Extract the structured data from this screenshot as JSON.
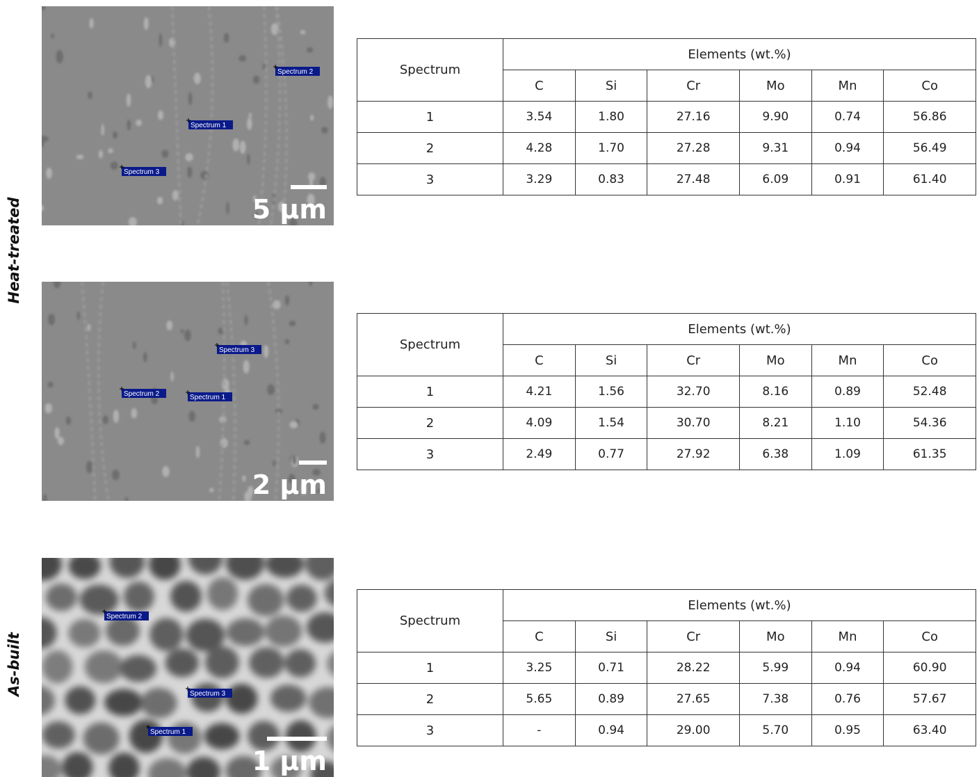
{
  "side_labels": [
    "Heat-treated",
    "As-built"
  ],
  "panels": [
    {
      "scale_bar": "5 µm",
      "markers": [
        "Spectrum 2",
        "Spectrum 1",
        "Spectrum 3"
      ],
      "table": {
        "row_header": "Spectrum",
        "group_header": "Elements (wt.%)",
        "elements": [
          "C",
          "Si",
          "Cr",
          "Mo",
          "Mn",
          "Co"
        ],
        "rows": [
          [
            "1",
            "3.54",
            "1.80",
            "27.16",
            "9.90",
            "0.74",
            "56.86"
          ],
          [
            "2",
            "4.28",
            "1.70",
            "27.28",
            "9.31",
            "0.94",
            "56.49"
          ],
          [
            "3",
            "3.29",
            "0.83",
            "27.48",
            "6.09",
            "0.91",
            "61.40"
          ]
        ]
      }
    },
    {
      "scale_bar": "2 µm",
      "markers": [
        "Spectrum 3",
        "Spectrum 2",
        "Spectrum 1"
      ],
      "table": {
        "row_header": "Spectrum",
        "group_header": "Elements (wt.%)",
        "elements": [
          "C",
          "Si",
          "Cr",
          "Mo",
          "Mn",
          "Co"
        ],
        "rows": [
          [
            "1",
            "4.21",
            "1.56",
            "32.70",
            "8.16",
            "0.89",
            "52.48"
          ],
          [
            "2",
            "4.09",
            "1.54",
            "30.70",
            "8.21",
            "1.10",
            "54.36"
          ],
          [
            "3",
            "2.49",
            "0.77",
            "27.92",
            "6.38",
            "1.09",
            "61.35"
          ]
        ]
      }
    },
    {
      "scale_bar": "1 µm",
      "markers": [
        "Spectrum 2",
        "Spectrum 3",
        "Spectrum 1"
      ],
      "table": {
        "row_header": "Spectrum",
        "group_header": "Elements (wt.%)",
        "elements": [
          "C",
          "Si",
          "Cr",
          "Mo",
          "Mn",
          "Co"
        ],
        "rows": [
          [
            "1",
            "3.25",
            "0.71",
            "28.22",
            "5.99",
            "0.94",
            "60.90"
          ],
          [
            "2",
            "5.65",
            "0.89",
            "27.65",
            "7.38",
            "0.76",
            "57.67"
          ],
          [
            "3",
            "-",
            "0.94",
            "29.00",
            "5.70",
            "0.95",
            "63.40"
          ]
        ]
      }
    }
  ]
}
